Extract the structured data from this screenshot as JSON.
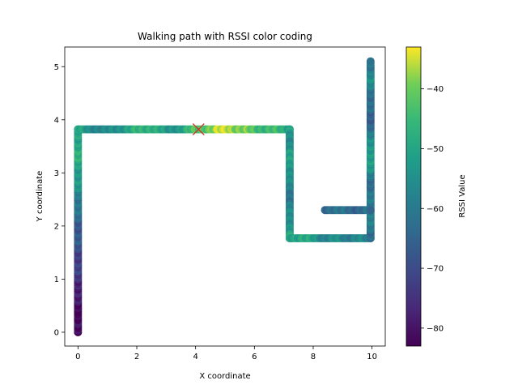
{
  "chart_data": {
    "type": "scatter",
    "title": "Walking path with RSSI color coding",
    "xlabel": "X coordinate",
    "ylabel": "Y coordinate",
    "xlim": [
      -0.45,
      10.45
    ],
    "ylim": [
      -0.26,
      5.37
    ],
    "xticks": [
      "0",
      "2",
      "4",
      "6",
      "8",
      "10"
    ],
    "yticks": [
      "0",
      "1",
      "2",
      "3",
      "4",
      "5"
    ],
    "colorbar": {
      "label": "RSSI Value",
      "range": [
        -83,
        -33
      ],
      "ticks": [
        "−40",
        "−50",
        "−60",
        "−70",
        "−80"
      ],
      "colormap": "viridis"
    },
    "marker": {
      "x": 4.1,
      "y": 3.82,
      "symbol": "x",
      "color": "#d62728"
    },
    "path_segments": [
      {
        "from": [
          0,
          0
        ],
        "to": [
          0,
          3.82
        ],
        "rssi": [
          -83,
          -82,
          -80,
          -74,
          -72,
          -68,
          -66,
          -60,
          -55,
          -50,
          -48,
          -50
        ]
      },
      {
        "from": [
          0,
          3.82
        ],
        "to": [
          7.2,
          3.82
        ],
        "rssi": [
          -50,
          -55,
          -58,
          -52,
          -48,
          -45,
          -55,
          -50,
          -42,
          -38,
          -35,
          -40,
          -44,
          -45,
          -50
        ]
      },
      {
        "from": [
          7.2,
          3.82
        ],
        "to": [
          7.2,
          1.77
        ],
        "rssi": [
          -52,
          -55,
          -50,
          -57,
          -60,
          -55,
          -50
        ]
      },
      {
        "from": [
          7.2,
          1.77
        ],
        "to": [
          9.95,
          1.77
        ],
        "rssi": [
          -50,
          -48,
          -52,
          -57,
          -55,
          -60,
          -54,
          -62
        ]
      },
      {
        "from": [
          9.95,
          1.77
        ],
        "to": [
          9.95,
          5.1
        ],
        "rssi": [
          -62,
          -60,
          -58,
          -64,
          -55,
          -50,
          -60,
          -66,
          -62,
          -56,
          -60
        ]
      },
      {
        "from": [
          8.4,
          2.3
        ],
        "to": [
          9.95,
          2.3
        ],
        "rssi": [
          -62,
          -64,
          -60,
          -66,
          -63
        ]
      }
    ]
  }
}
